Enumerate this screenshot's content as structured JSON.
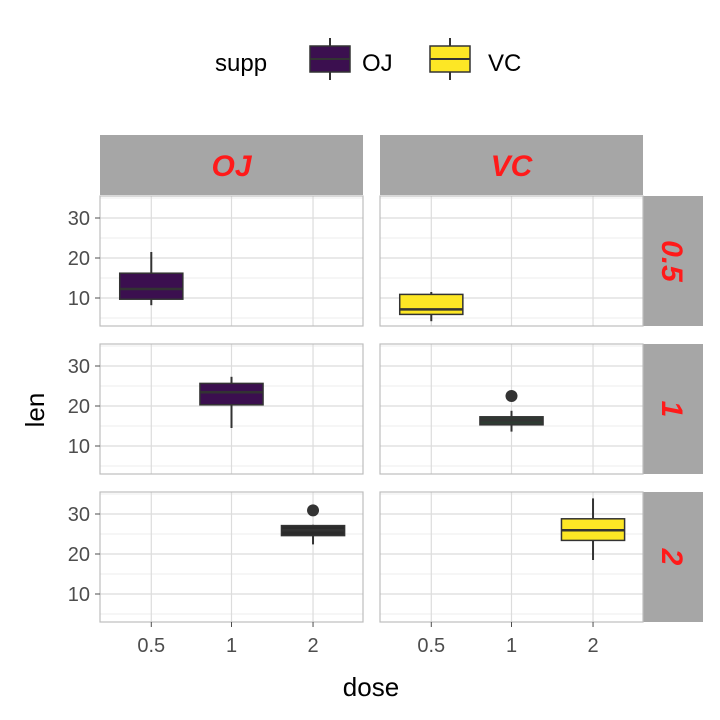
{
  "chart_data": {
    "type": "boxplot",
    "facet_cols": [
      "OJ",
      "VC"
    ],
    "facet_rows": [
      "0.5",
      "1",
      "2"
    ],
    "xlabel": "dose",
    "ylabel": "len",
    "x_categories": [
      "0.5",
      "1",
      "2"
    ],
    "y_ticks": [
      "10",
      "20",
      "30"
    ],
    "ylim": [
      3,
      35.5
    ],
    "legend": {
      "title": "supp",
      "position": "top",
      "entries": [
        {
          "label": "OJ",
          "color": "#3b0f4f"
        },
        {
          "label": "VC",
          "color": "#fde725"
        }
      ]
    },
    "strip_color": "#a6a6a6",
    "strip_text_color": "#ff1a1a",
    "grid": true,
    "boxes": [
      {
        "supp": "OJ",
        "dose": "0.5",
        "row": 0,
        "col": 0,
        "x_index": 0,
        "min": 8.2,
        "q1": 9.7,
        "median": 12.25,
        "q3": 16.2,
        "max": 21.5,
        "outliers": [],
        "color": "#3b0f4f"
      },
      {
        "supp": "VC",
        "dose": "0.5",
        "row": 0,
        "col": 1,
        "x_index": 0,
        "min": 4.2,
        "q1": 5.9,
        "median": 7.15,
        "q3": 10.9,
        "max": 11.5,
        "outliers": [],
        "color": "#fde725"
      },
      {
        "supp": "OJ",
        "dose": "1",
        "row": 1,
        "col": 0,
        "x_index": 1,
        "min": 14.5,
        "q1": 20.3,
        "median": 23.45,
        "q3": 25.65,
        "max": 27.3,
        "outliers": [],
        "color": "#3b0f4f"
      },
      {
        "supp": "VC",
        "dose": "1",
        "row": 1,
        "col": 1,
        "x_index": 1,
        "min": 13.6,
        "q1": 15.3,
        "median": 16.5,
        "q3": 17.3,
        "max": 18.8,
        "outliers": [
          22.5
        ],
        "color": "#2e3b32"
      },
      {
        "supp": "OJ",
        "dose": "2",
        "row": 2,
        "col": 0,
        "x_index": 2,
        "min": 22.4,
        "q1": 24.6,
        "median": 25.95,
        "q3": 27.1,
        "max": 27.3,
        "outliers": [
          30.9
        ],
        "color": "#2b2b2b"
      },
      {
        "supp": "VC",
        "dose": "2",
        "row": 2,
        "col": 1,
        "x_index": 2,
        "min": 18.5,
        "q1": 23.4,
        "median": 25.95,
        "q3": 28.8,
        "max": 33.9,
        "outliers": [],
        "color": "#fde725"
      }
    ]
  }
}
